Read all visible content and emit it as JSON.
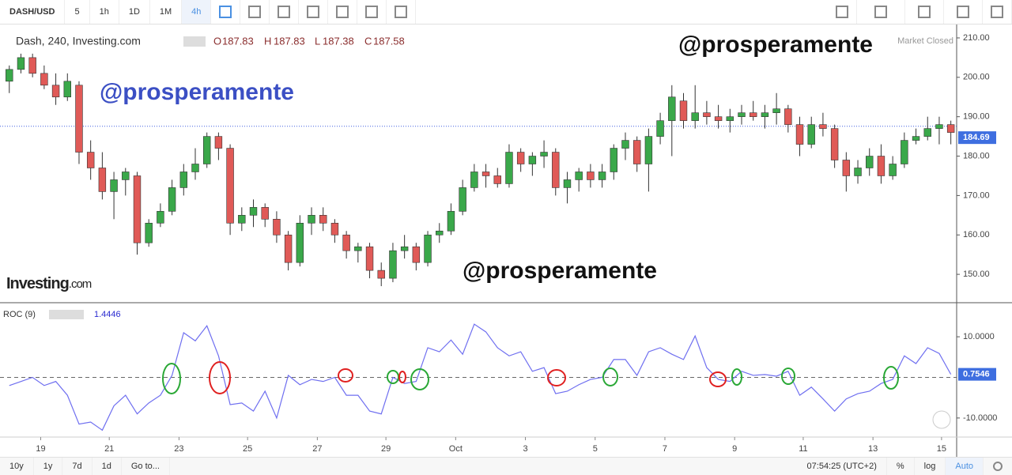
{
  "toolbar": {
    "symbol": "DASH/USD",
    "intervals": [
      "5",
      "1h",
      "1D",
      "1M",
      "4h"
    ]
  },
  "legend": {
    "name": "Dash, 240, Investing.com",
    "open_label": "O",
    "open": 187.83,
    "high_label": "H",
    "high": 187.83,
    "low_label": "L",
    "low": 187.38,
    "close_label": "C",
    "close": 187.58
  },
  "market_status": "Market Closed",
  "watermarks": [
    "@prosperamente",
    "@prosperamente",
    "@prosperamente"
  ],
  "logo": [
    "Investing",
    ".com"
  ],
  "chart_data": [
    {
      "type": "candlestick",
      "up_color": "#3aa84a",
      "down_color": "#e05a57",
      "xlim": [
        -0.8,
        81.5
      ],
      "ylim": [
        142.8,
        212.6
      ],
      "yticks": [
        {
          "value": 150,
          "label": "150.00"
        },
        {
          "value": 160,
          "label": "160.00"
        },
        {
          "value": 170,
          "label": "170.00"
        },
        {
          "value": 180,
          "label": "180.00"
        },
        {
          "value": 190,
          "label": "190.00"
        },
        {
          "value": 200,
          "label": "200.00"
        },
        {
          "value": 210,
          "label": "210.00"
        }
      ],
      "price_label": 184.69,
      "candles": [
        [
          199,
          203,
          196,
          202
        ],
        [
          202,
          206,
          201,
          205
        ],
        [
          205,
          206,
          200,
          201
        ],
        [
          201,
          203,
          197,
          198
        ],
        [
          198,
          201,
          193,
          195
        ],
        [
          195,
          201,
          194,
          199
        ],
        [
          198,
          199,
          178,
          181
        ],
        [
          181,
          184,
          174,
          177
        ],
        [
          177,
          181,
          169,
          171
        ],
        [
          171,
          176,
          164,
          174
        ],
        [
          174,
          177,
          170,
          176
        ],
        [
          175,
          176,
          155,
          158
        ],
        [
          158,
          164,
          157,
          163
        ],
        [
          163,
          168,
          162,
          166
        ],
        [
          166,
          174,
          165,
          172
        ],
        [
          172,
          178,
          170,
          176
        ],
        [
          176,
          182,
          174,
          178
        ],
        [
          178,
          186,
          177,
          185
        ],
        [
          185,
          186,
          179,
          182
        ],
        [
          182,
          183,
          160,
          163
        ],
        [
          163,
          167,
          161,
          165
        ],
        [
          165,
          169,
          162,
          167
        ],
        [
          167,
          168,
          162,
          164
        ],
        [
          164,
          166,
          158,
          160
        ],
        [
          160,
          161,
          151,
          153
        ],
        [
          153,
          165,
          152,
          163
        ],
        [
          163,
          167,
          160,
          165
        ],
        [
          165,
          167,
          161,
          163
        ],
        [
          163,
          164,
          158,
          160
        ],
        [
          160,
          161,
          154,
          156
        ],
        [
          156,
          158,
          153,
          157
        ],
        [
          157,
          158,
          149,
          151
        ],
        [
          151,
          153,
          147,
          149
        ],
        [
          149,
          158,
          148,
          156
        ],
        [
          156,
          160,
          154,
          157
        ],
        [
          157,
          158,
          151,
          153
        ],
        [
          153,
          161,
          152,
          160
        ],
        [
          160,
          163,
          158,
          161
        ],
        [
          161,
          168,
          160,
          166
        ],
        [
          166,
          174,
          165,
          172
        ],
        [
          172,
          178,
          171,
          176
        ],
        [
          176,
          178,
          172,
          175
        ],
        [
          175,
          177,
          172,
          173
        ],
        [
          173,
          183,
          172,
          181
        ],
        [
          181,
          182,
          176,
          178
        ],
        [
          178,
          181,
          175,
          180
        ],
        [
          180,
          184,
          177,
          181
        ],
        [
          181,
          182,
          170,
          172
        ],
        [
          172,
          176,
          168,
          174
        ],
        [
          174,
          177,
          171,
          176
        ],
        [
          176,
          178,
          172,
          174
        ],
        [
          174,
          178,
          172,
          176
        ],
        [
          176,
          183,
          174,
          182
        ],
        [
          182,
          186,
          179,
          184
        ],
        [
          184,
          185,
          176,
          178
        ],
        [
          178,
          187,
          171,
          185
        ],
        [
          185,
          191,
          183,
          189
        ],
        [
          189,
          198,
          180,
          195
        ],
        [
          194,
          196,
          187,
          189
        ],
        [
          189,
          198,
          187,
          191
        ],
        [
          191,
          194,
          188,
          190
        ],
        [
          190,
          193,
          187,
          189
        ],
        [
          189,
          192,
          186,
          190
        ],
        [
          190,
          193,
          188,
          191
        ],
        [
          191,
          194,
          189,
          190
        ],
        [
          190,
          193,
          187,
          191
        ],
        [
          191,
          196,
          188,
          192
        ],
        [
          192,
          193,
          186,
          188
        ],
        [
          188,
          190,
          180,
          183
        ],
        [
          183,
          190,
          182,
          188
        ],
        [
          188,
          191,
          185,
          187
        ],
        [
          187,
          188,
          177,
          179
        ],
        [
          179,
          181,
          171,
          175
        ],
        [
          175,
          179,
          173,
          177
        ],
        [
          177,
          182,
          175,
          180
        ],
        [
          180,
          183,
          173,
          175
        ],
        [
          175,
          180,
          174,
          178
        ],
        [
          178,
          186,
          177,
          184
        ],
        [
          184,
          187,
          183,
          185
        ],
        [
          185,
          190,
          184,
          187
        ],
        [
          187,
          190,
          183,
          188
        ],
        [
          188,
          189,
          183,
          186
        ]
      ]
    },
    {
      "type": "line",
      "title": "ROC (9)",
      "header_value": 1.4446,
      "color": "#6f6ff0",
      "xlim": [
        -0.8,
        81.5
      ],
      "ylim": [
        -14.5,
        18
      ],
      "yticks": [
        {
          "value": -10,
          "label": "-10.0000"
        },
        {
          "value": 10,
          "label": "10.0000"
        }
      ],
      "xticks": [
        {
          "value": 2.7,
          "label": "19"
        },
        {
          "value": 8.6,
          "label": "21"
        },
        {
          "value": 14.6,
          "label": "23"
        },
        {
          "value": 20.5,
          "label": "25"
        },
        {
          "value": 26.5,
          "label": "27"
        },
        {
          "value": 32.4,
          "label": "29"
        },
        {
          "value": 38.4,
          "label": "Oct"
        },
        {
          "value": 44.4,
          "label": "3"
        },
        {
          "value": 50.4,
          "label": "5"
        },
        {
          "value": 56.4,
          "label": "7"
        },
        {
          "value": 62.4,
          "label": "9"
        },
        {
          "value": 68.3,
          "label": "11"
        },
        {
          "value": 74.3,
          "label": "13"
        },
        {
          "value": 80.2,
          "label": "15"
        }
      ],
      "values": [
        -2,
        -1,
        0,
        -2,
        -1,
        -4.4,
        -11.5,
        -11,
        -13,
        -7,
        -4.4,
        -9,
        -6.3,
        -4.4,
        0.5,
        11,
        9,
        12.7,
        5.3,
        -6.7,
        -6.3,
        -8.3,
        -3.4,
        -10,
        0.5,
        -1.8,
        -0.5,
        -1,
        0,
        -4.4,
        -4.4,
        -8.3,
        -9,
        0,
        -1.5,
        -1,
        7.3,
        6.3,
        9.2,
        5.7,
        13.1,
        11.2,
        7.3,
        5.3,
        6.3,
        1.5,
        2.4,
        -4,
        -3.4,
        -1.8,
        -0.5,
        0,
        4.4,
        4.4,
        0.5,
        6.3,
        7.3,
        5.7,
        4.4,
        10.2,
        2.4,
        -0.5,
        -1,
        1.5,
        0.5,
        0.7,
        0.3,
        1.5,
        -4.4,
        -2.4,
        -5.3,
        -8.3,
        -5.3,
        -4,
        -3.4,
        -1.5,
        -0.5,
        5.3,
        3.4,
        7.3,
        5.9,
        0.7546
      ]
    }
  ],
  "bottom_bar": {
    "ranges": [
      "10y",
      "1y",
      "7d",
      "1d"
    ],
    "goto": "Go to...",
    "time": "07:54:25 (UTC+2)",
    "options": [
      "%",
      "log",
      "Auto"
    ]
  }
}
